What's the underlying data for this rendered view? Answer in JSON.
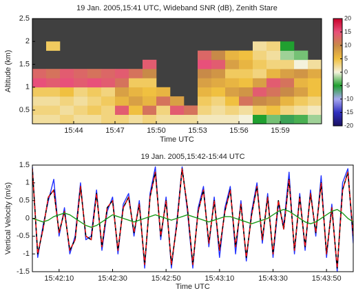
{
  "chart_data": [
    {
      "type": "heatmap",
      "title": "19 Jan. 2005,15:41 UTC,  Wideband SNR (dB), Zenith Stare",
      "xlabel": "Time UTC",
      "ylabel": "Altitude (km)",
      "xlim": [
        41,
        62
      ],
      "xticks": [
        {
          "value": 44,
          "label": "15:44"
        },
        {
          "value": 47,
          "label": "15:47"
        },
        {
          "value": 50,
          "label": "15:50"
        },
        {
          "value": 53,
          "label": "15:53"
        },
        {
          "value": 56,
          "label": "15:56"
        },
        {
          "value": 59,
          "label": "15:59"
        }
      ],
      "ylim": [
        0.2,
        2.5
      ],
      "yticks": [
        0.5,
        1,
        1.5,
        2,
        2.5
      ],
      "x": [
        41.5,
        42.5,
        43.5,
        44.5,
        45.5,
        46.5,
        47.5,
        48.5,
        49.5,
        50.5,
        51.5,
        52.5,
        53.5,
        54.5,
        55.5,
        56.5,
        57.5,
        58.5,
        59.5,
        60.5,
        61.5
      ],
      "y": [
        0.3,
        0.5,
        0.7,
        0.9,
        1.1,
        1.3,
        1.5,
        1.7,
        1.9
      ],
      "z": [
        [
          2,
          2,
          3,
          2,
          2,
          3,
          3,
          2,
          3,
          2,
          2,
          2,
          1,
          1,
          1,
          0,
          -5,
          -3,
          -6,
          -4,
          -2
        ],
        [
          3,
          3,
          2,
          3,
          4,
          3,
          14,
          5,
          12,
          3,
          14,
          12,
          3,
          2,
          3,
          2,
          4,
          5,
          3,
          2,
          1
        ],
        [
          2,
          2,
          3,
          2,
          3,
          4,
          6,
          8,
          6,
          12,
          8,
          null,
          4,
          3,
          5,
          12,
          10,
          9,
          6,
          4,
          3
        ],
        [
          4,
          4,
          5,
          3,
          4,
          3,
          8,
          6,
          5,
          6,
          null,
          null,
          6,
          5,
          8,
          9,
          14,
          12,
          10,
          8,
          5
        ],
        [
          15,
          14,
          15,
          14,
          15,
          14,
          12,
          4,
          4,
          null,
          null,
          null,
          8,
          7,
          6,
          5,
          8,
          14,
          12,
          6,
          5
        ],
        [
          13,
          12,
          14,
          13,
          12,
          13,
          14,
          12,
          10,
          null,
          null,
          null,
          10,
          9,
          4,
          4,
          3,
          6,
          8,
          9,
          7
        ],
        [
          null,
          null,
          null,
          null,
          null,
          null,
          null,
          null,
          14,
          null,
          null,
          null,
          15,
          14,
          8,
          6,
          4,
          3,
          3,
          0,
          2
        ],
        [
          null,
          null,
          null,
          null,
          null,
          null,
          null,
          null,
          null,
          null,
          null,
          null,
          13,
          10,
          6,
          5,
          3,
          2,
          -2,
          -3,
          null
        ],
        [
          null,
          4,
          null,
          null,
          null,
          null,
          null,
          null,
          null,
          null,
          null,
          null,
          null,
          null,
          null,
          null,
          2,
          3,
          -5,
          null,
          null
        ]
      ],
      "background": "#404040",
      "clim": [
        -20,
        20
      ],
      "cticks": [
        20,
        15,
        10,
        5,
        0,
        -5,
        -10,
        -15,
        -20
      ],
      "colorscale": [
        "#1a1060",
        "#3030c0",
        "#a8a8f0",
        "#20a030",
        "#f4f2dc",
        "#f0c040",
        "#c88a48",
        "#e8507a",
        "#c8002a"
      ]
    },
    {
      "type": "line",
      "title": "19 Jan. 2005,15:42-15:44 UTC",
      "xlabel": "Time UTC",
      "ylabel": "Vertical Velocity (m/s)",
      "xlim": [
        0,
        120
      ],
      "xticks": [
        {
          "value": 10,
          "label": "15:42:10"
        },
        {
          "value": 30,
          "label": "15:42:30"
        },
        {
          "value": 50,
          "label": "15:42:50"
        },
        {
          "value": 70,
          "label": "15:43:10"
        },
        {
          "value": 90,
          "label": "15:43:30"
        },
        {
          "value": 110,
          "label": "15:43:50"
        }
      ],
      "ylim": [
        -1.5,
        1.5
      ],
      "yticks": [
        -1.5,
        -1,
        -0.5,
        0,
        0.5,
        1,
        1.5
      ],
      "x": [
        0,
        2,
        4,
        6,
        8,
        10,
        12,
        14,
        16,
        18,
        20,
        22,
        24,
        26,
        28,
        30,
        32,
        34,
        36,
        38,
        40,
        42,
        44,
        46,
        48,
        50,
        52,
        54,
        56,
        58,
        60,
        62,
        64,
        66,
        68,
        70,
        72,
        74,
        76,
        78,
        80,
        82,
        84,
        86,
        88,
        90,
        92,
        94,
        96,
        98,
        100,
        102,
        104,
        106,
        108,
        110,
        112,
        114,
        116,
        118,
        120
      ],
      "series": [
        {
          "color": "#1f2fff",
          "values": [
            1.45,
            -1.1,
            -0.2,
            0.5,
            1.1,
            -0.5,
            0.3,
            -1.0,
            -0.5,
            1.0,
            -0.6,
            -0.5,
            0.8,
            -0.9,
            0.2,
            0.6,
            -1.0,
            0.4,
            0.7,
            -0.5,
            0.5,
            -1.4,
            0.7,
            1.45,
            -0.6,
            0.6,
            -1.4,
            -0.1,
            1.45,
            0.2,
            -1.4,
            0.3,
            0.9,
            -0.8,
            0.6,
            -1.1,
            0.3,
            0.9,
            -1.0,
            0.5,
            -1.2,
            0.2,
            1.0,
            -0.7,
            0.7,
            -1.1,
            0.4,
            -0.2,
            1.3,
            -1.0,
            0.7,
            -0.9,
            0.8,
            -0.5,
            1.2,
            -1.1,
            0.4,
            -1.5,
            1.0,
            1.4,
            -0.7
          ]
        },
        {
          "color": "#ff1010",
          "dashed": true,
          "values": [
            1.4,
            -1.0,
            -0.3,
            0.6,
            0.8,
            -0.4,
            0.2,
            -0.9,
            -0.6,
            0.9,
            -0.5,
            -0.6,
            0.7,
            -0.8,
            0.3,
            0.5,
            -0.9,
            0.3,
            0.6,
            -0.4,
            0.4,
            -1.3,
            0.6,
            1.3,
            -0.5,
            0.5,
            -1.3,
            -0.2,
            1.4,
            0.3,
            -1.3,
            0.2,
            0.8,
            -0.7,
            0.5,
            -0.9,
            0.2,
            0.8,
            -0.8,
            0.4,
            -1.1,
            0.1,
            0.9,
            -0.6,
            0.6,
            -1.0,
            0.5,
            -0.3,
            1.1,
            -0.9,
            0.6,
            -0.8,
            0.7,
            -0.4,
            1.0,
            -1.0,
            0.3,
            -1.4,
            0.8,
            1.3,
            -0.5
          ]
        },
        {
          "color": "#1a9a1a",
          "values": [
            0,
            -0.05,
            -0.1,
            -0.05,
            0.05,
            0.1,
            0.15,
            0.1,
            0,
            -0.1,
            -0.2,
            -0.25,
            -0.2,
            -0.1,
            0,
            0.1,
            0.05,
            0,
            -0.05,
            -0.1,
            -0.05,
            0,
            0.05,
            0.1,
            0.05,
            0,
            -0.05,
            0,
            0.05,
            0.1,
            0.05,
            0,
            -0.05,
            -0.1,
            -0.05,
            0,
            0.05,
            0.05,
            0,
            -0.05,
            -0.1,
            -0.15,
            -0.1,
            -0.05,
            0,
            0.1,
            0.2,
            0.25,
            0.2,
            0.1,
            0,
            -0.1,
            -0.15,
            -0.1,
            0,
            0.1,
            0.2,
            0.25,
            0.15,
            0,
            -0.1
          ]
        }
      ]
    }
  ]
}
